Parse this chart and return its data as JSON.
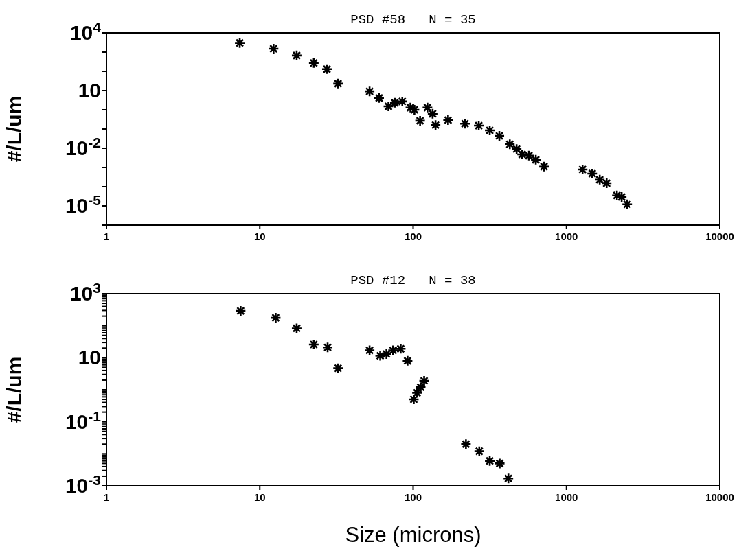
{
  "chart_data": [
    {
      "type": "scatter",
      "title": "PSD #58   N = 35",
      "ylabel": "#/L/um",
      "color": "#000000",
      "log": "xy",
      "xlim": [
        1,
        10000
      ],
      "xticks": [
        1,
        10,
        100,
        1000,
        10000
      ],
      "ylim": [
        1e-06,
        10000
      ],
      "yticks": [
        {
          "value": 10000,
          "label": "10$^{4}$"
        },
        {
          "value": 1000,
          "label": null
        },
        {
          "value": 100,
          "label": null
        },
        10,
        {
          "value": 1,
          "label": null
        },
        {
          "value": 0.1,
          "label": null
        },
        {
          "value": 0.01,
          "label": "10$^{-2}$"
        },
        {
          "value": 0.001,
          "label": null
        },
        {
          "value": 0.0001,
          "label": null
        },
        {
          "value": 1e-05,
          "label": "10$^{-5}$"
        },
        {
          "value": 1e-06,
          "label": null
        }
      ],
      "x": [
        7.4,
        12.3,
        17.4,
        22.5,
        27.4,
        32.4,
        52,
        60,
        69,
        76,
        85,
        96,
        102,
        111,
        124,
        134,
        140,
        169,
        218,
        268,
        316,
        365,
        427,
        473,
        514,
        569,
        631,
        714,
        1274,
        1472,
        1648,
        1828,
        2133,
        2291,
        2489
      ],
      "marker": "cross",
      "values": [
        3000,
        1500,
        670,
        275,
        130,
        23,
        9.1,
        4.1,
        1.5,
        2.3,
        2.7,
        1.3,
        1.0,
        0.27,
        1.3,
        0.62,
        0.16,
        0.29,
        0.19,
        0.15,
        0.085,
        0.044,
        0.016,
        0.0091,
        0.0048,
        0.0041,
        0.0025,
        0.0011,
        0.00078,
        0.00048,
        0.00023,
        0.00015,
        3.5e-05,
        2.9e-05,
        1.2e-05
      ]
    },
    {
      "type": "scatter",
      "title": "PSD #12   N = 38",
      "xlabel": "Size (microns)",
      "ylabel": "#/L/um",
      "marker": "cross",
      "color": "#000000",
      "log": "xy",
      "xlim": [
        1,
        10000
      ],
      "xticks": [
        1,
        10,
        100,
        1000,
        10000
      ],
      "ylim": [
        0.001,
        1000
      ],
      "yticks": [
        {
          "value": 1000,
          "label": "10$^{3}$"
        },
        {
          "value": 900,
          "label": null
        },
        {
          "value": 800,
          "label": null
        },
        {
          "value": 700,
          "label": null
        },
        {
          "value": 600,
          "label": null
        },
        {
          "value": 500,
          "label": null
        },
        {
          "value": 400,
          "label": null
        },
        {
          "value": 300,
          "label": null
        },
        {
          "value": 200,
          "label": null
        },
        {
          "value": 100,
          "label": null
        },
        {
          "value": 90,
          "label": null
        },
        {
          "value": 80,
          "label": null
        },
        {
          "value": 70,
          "label": null
        },
        {
          "value": 60,
          "label": null
        },
        {
          "value": 50,
          "label": null
        },
        {
          "value": 40,
          "label": null
        },
        {
          "value": 30,
          "label": null
        },
        {
          "value": 20,
          "label": null
        },
        10,
        {
          "value": 9,
          "label": null
        },
        {
          "value": 8,
          "label": null
        },
        {
          "value": 7,
          "label": null
        },
        {
          "value": 6,
          "label": null
        },
        {
          "value": 5,
          "label": null
        },
        {
          "value": 4,
          "label": null
        },
        {
          "value": 3,
          "label": null
        },
        {
          "value": 2,
          "label": null
        },
        {
          "value": 1,
          "label": null
        },
        {
          "value": 0.9,
          "label": null
        },
        {
          "value": 0.8,
          "label": null
        },
        {
          "value": 0.7,
          "label": null
        },
        {
          "value": 0.6,
          "label": null
        },
        {
          "value": 0.5,
          "label": null
        },
        {
          "value": 0.4,
          "label": null
        },
        {
          "value": 0.3,
          "label": null
        },
        {
          "value": 0.2,
          "label": null
        },
        {
          "value": 0.1,
          "label": "10$^{-1}$"
        },
        {
          "value": 0.09,
          "label": null
        },
        {
          "value": 0.08,
          "label": null
        },
        {
          "value": 0.07,
          "label": null
        },
        {
          "value": 0.06,
          "label": null
        },
        {
          "value": 0.05,
          "label": null
        },
        {
          "value": 0.04,
          "label": null
        },
        {
          "value": 0.03,
          "label": null
        },
        {
          "value": 0.02,
          "label": null
        },
        {
          "value": 0.01,
          "label": null
        },
        {
          "value": 0.009,
          "label": null
        },
        {
          "value": 0.008,
          "label": null
        },
        {
          "value": 0.007,
          "label": null
        },
        {
          "value": 0.006,
          "label": null
        },
        {
          "value": 0.005,
          "label": null
        },
        {
          "value": 0.004,
          "label": null
        },
        {
          "value": 0.003,
          "label": null
        },
        {
          "value": 0.002,
          "label": null
        },
        {
          "value": 0.001,
          "label": "10$^{-3}$"
        }
      ],
      "x": [
        7.5,
        12.7,
        17.4,
        22.5,
        27.7,
        32.4,
        52,
        61,
        67,
        74,
        83,
        92,
        101,
        106,
        112,
        118,
        221,
        270,
        316,
        367,
        418
      ],
      "values": [
        290,
        177,
        83,
        26,
        21,
        4.7,
        17,
        11.5,
        13,
        17,
        19,
        8,
        0.5,
        0.8,
        1.2,
        1.9,
        0.02,
        0.012,
        0.006,
        0.005,
        0.0017
      ]
    }
  ]
}
